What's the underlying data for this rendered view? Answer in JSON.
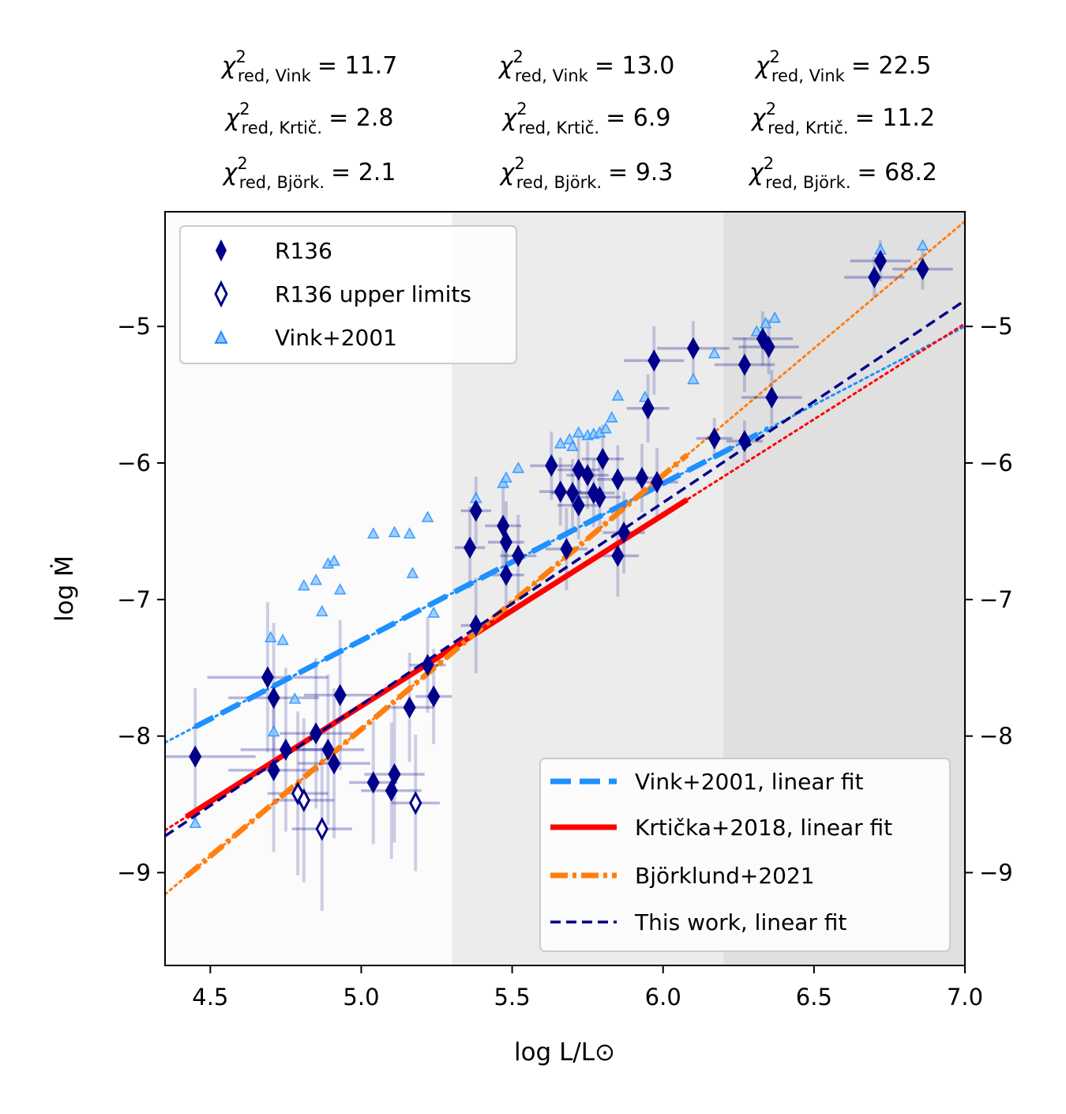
{
  "chart_data": {
    "type": "scatter",
    "xlabel": "log L/L⊙",
    "ylabel": "log Ṁ",
    "xlim": [
      4.35,
      7.0
    ],
    "ylim": [
      -9.68,
      -4.16
    ],
    "x_ticks": [
      "4.5",
      "5.0",
      "5.5",
      "6.0",
      "6.5",
      "7.0"
    ],
    "x_tick_values": [
      4.5,
      5.0,
      5.5,
      6.0,
      6.5,
      7.0
    ],
    "y_ticks": [
      "−5",
      "−6",
      "−7",
      "−8",
      "−9"
    ],
    "y_tick_values": [
      -5,
      -6,
      -7,
      -8,
      -9
    ],
    "shaded_regions": [
      {
        "x": [
          4.35,
          5.3
        ],
        "color": "#fbfbfb"
      },
      {
        "x": [
          5.3,
          6.2
        ],
        "color": "#ececec"
      },
      {
        "x": [
          6.2,
          7.0
        ],
        "color": "#e0e0e0"
      }
    ],
    "statistics": [
      {
        "vink": "χ²red, Vink = 11.7",
        "krticka": "χ²red, Krtič. = 2.8",
        "bjorklund": "χ²red, Björk. = 2.1",
        "vink_value": "= 11.7",
        "krticka_value": "= 2.8",
        "bjorklund_value": "= 2.1"
      },
      {
        "vink": "χ²red, Vink = 13.0",
        "krticka": "χ²red, Krtič. = 6.9",
        "bjorklund": "χ²red, Björk. = 9.3",
        "vink_value": "= 13.0",
        "krticka_value": "= 6.9",
        "bjorklund_value": "= 9.3"
      },
      {
        "vink": "χ²red, Vink = 22.5",
        "krticka": "χ²red, Krtič. = 11.2",
        "bjorklund": "χ²red, Björk. = 68.2",
        "vink_value": "= 22.5",
        "krticka_value": "= 11.2",
        "bjorklund_value": "= 68.2"
      }
    ],
    "stat_symbol": "χ",
    "stat_sub_prefix": "red, ",
    "stat_sub_names": [
      "Vink",
      "Krtič.",
      "Björk."
    ],
    "stat_sup": "2",
    "series": [
      {
        "name": "R136",
        "marker": "filled-diamond",
        "color": "#00008b",
        "points": [
          {
            "x": 4.45,
            "y": -8.15,
            "xerr": 0.2,
            "yerr": 0.5
          },
          {
            "x": 4.69,
            "y": -7.57,
            "xerr": 0.2,
            "yerr": 0.55
          },
          {
            "x": 4.71,
            "y": -7.72,
            "xerr": 0.15,
            "yerr": 0.55
          },
          {
            "x": 4.71,
            "y": -8.25,
            "xerr": 0.15,
            "yerr": 0.6
          },
          {
            "x": 4.75,
            "y": -8.1,
            "xerr": 0.15,
            "yerr": 0.6
          },
          {
            "x": 4.85,
            "y": -7.98,
            "xerr": 0.12,
            "yerr": 0.55
          },
          {
            "x": 4.89,
            "y": -8.1,
            "xerr": 0.12,
            "yerr": 0.55
          },
          {
            "x": 4.91,
            "y": -8.2,
            "xerr": 0.12,
            "yerr": 0.55
          },
          {
            "x": 4.93,
            "y": -7.7,
            "xerr": 0.12,
            "yerr": 0.55
          },
          {
            "x": 5.04,
            "y": -8.34,
            "xerr": 0.08,
            "yerr": 0.45
          },
          {
            "x": 5.1,
            "y": -8.4,
            "xerr": 0.1,
            "yerr": 0.5
          },
          {
            "x": 5.11,
            "y": -8.28,
            "xerr": 0.1,
            "yerr": 0.5
          },
          {
            "x": 5.16,
            "y": -7.79,
            "xerr": 0.08,
            "yerr": 0.4
          },
          {
            "x": 5.22,
            "y": -7.48,
            "xerr": 0.06,
            "yerr": 0.35
          },
          {
            "x": 5.24,
            "y": -7.71,
            "xerr": 0.06,
            "yerr": 0.35
          },
          {
            "x": 5.36,
            "y": -6.62,
            "xerr": 0.05,
            "yerr": 0.3
          },
          {
            "x": 5.38,
            "y": -6.35,
            "xerr": 0.05,
            "yerr": 0.25
          },
          {
            "x": 5.38,
            "y": -7.19,
            "xerr": 0.05,
            "yerr": 0.35
          },
          {
            "x": 5.47,
            "y": -6.46,
            "xerr": 0.06,
            "yerr": 0.3
          },
          {
            "x": 5.48,
            "y": -6.58,
            "xerr": 0.06,
            "yerr": 0.3
          },
          {
            "x": 5.48,
            "y": -6.82,
            "xerr": 0.06,
            "yerr": 0.3
          },
          {
            "x": 5.52,
            "y": -6.68,
            "xerr": 0.06,
            "yerr": 0.3
          },
          {
            "x": 5.63,
            "y": -6.02,
            "xerr": 0.07,
            "yerr": 0.25
          },
          {
            "x": 5.66,
            "y": -6.21,
            "xerr": 0.07,
            "yerr": 0.25
          },
          {
            "x": 5.68,
            "y": -6.63,
            "xerr": 0.07,
            "yerr": 0.3
          },
          {
            "x": 5.7,
            "y": -6.22,
            "xerr": 0.07,
            "yerr": 0.25
          },
          {
            "x": 5.72,
            "y": -6.05,
            "xerr": 0.07,
            "yerr": 0.25
          },
          {
            "x": 5.72,
            "y": -6.31,
            "xerr": 0.07,
            "yerr": 0.25
          },
          {
            "x": 5.75,
            "y": -6.09,
            "xerr": 0.07,
            "yerr": 0.25
          },
          {
            "x": 5.77,
            "y": -6.22,
            "xerr": 0.07,
            "yerr": 0.25
          },
          {
            "x": 5.79,
            "y": -6.25,
            "xerr": 0.07,
            "yerr": 0.25
          },
          {
            "x": 5.8,
            "y": -5.97,
            "xerr": 0.07,
            "yerr": 0.25
          },
          {
            "x": 5.85,
            "y": -6.12,
            "xerr": 0.07,
            "yerr": 0.25
          },
          {
            "x": 5.85,
            "y": -6.68,
            "xerr": 0.07,
            "yerr": 0.3
          },
          {
            "x": 5.87,
            "y": -6.51,
            "xerr": 0.07,
            "yerr": 0.3
          },
          {
            "x": 5.93,
            "y": -6.11,
            "xerr": 0.07,
            "yerr": 0.25
          },
          {
            "x": 5.95,
            "y": -5.6,
            "xerr": 0.07,
            "yerr": 0.25
          },
          {
            "x": 5.97,
            "y": -5.25,
            "xerr": 0.1,
            "yerr": 0.25
          },
          {
            "x": 5.98,
            "y": -6.14,
            "xerr": 0.07,
            "yerr": 0.25
          },
          {
            "x": 6.1,
            "y": -5.16,
            "xerr": 0.12,
            "yerr": 0.2
          },
          {
            "x": 6.17,
            "y": -5.82,
            "xerr": 0.06,
            "yerr": 0.15
          },
          {
            "x": 6.27,
            "y": -5.28,
            "xerr": 0.1,
            "yerr": 0.2
          },
          {
            "x": 6.27,
            "y": -5.84,
            "xerr": 0.06,
            "yerr": 0.15
          },
          {
            "x": 6.33,
            "y": -5.09,
            "xerr": 0.1,
            "yerr": 0.2
          },
          {
            "x": 6.35,
            "y": -5.15,
            "xerr": 0.1,
            "yerr": 0.2
          },
          {
            "x": 6.36,
            "y": -5.52,
            "xerr": 0.1,
            "yerr": 0.2
          },
          {
            "x": 6.7,
            "y": -4.64,
            "xerr": 0.1,
            "yerr": 0.15
          },
          {
            "x": 6.72,
            "y": -4.52,
            "xerr": 0.1,
            "yerr": 0.15
          },
          {
            "x": 6.86,
            "y": -4.58,
            "xerr": 0.1,
            "yerr": 0.15
          }
        ]
      },
      {
        "name": "R136 upper limits",
        "marker": "open-diamond",
        "color": "#00008b",
        "points": [
          {
            "x": 4.79,
            "y": -8.42,
            "xerr": 0.1,
            "yerr": 0.6
          },
          {
            "x": 4.81,
            "y": -8.47,
            "xerr": 0.1,
            "yerr": 0.6
          },
          {
            "x": 4.87,
            "y": -8.68,
            "xerr": 0.1,
            "yerr": 0.6
          },
          {
            "x": 5.18,
            "y": -8.49,
            "xerr": 0.08,
            "yerr": 0.5
          }
        ]
      },
      {
        "name": "Vink+2001",
        "marker": "triangle",
        "color": "#1e90ff",
        "points": [
          {
            "x": 4.45,
            "y": -8.64
          },
          {
            "x": 4.7,
            "y": -7.28
          },
          {
            "x": 4.71,
            "y": -7.97
          },
          {
            "x": 4.74,
            "y": -7.3
          },
          {
            "x": 4.78,
            "y": -7.73
          },
          {
            "x": 4.81,
            "y": -6.9
          },
          {
            "x": 4.85,
            "y": -6.86
          },
          {
            "x": 4.87,
            "y": -7.09
          },
          {
            "x": 4.89,
            "y": -6.74
          },
          {
            "x": 4.91,
            "y": -6.72
          },
          {
            "x": 4.93,
            "y": -6.93
          },
          {
            "x": 5.04,
            "y": -6.52
          },
          {
            "x": 5.11,
            "y": -6.51
          },
          {
            "x": 5.16,
            "y": -6.52
          },
          {
            "x": 5.17,
            "y": -6.81
          },
          {
            "x": 5.22,
            "y": -6.4
          },
          {
            "x": 5.24,
            "y": -7.1
          },
          {
            "x": 5.38,
            "y": -6.26
          },
          {
            "x": 5.47,
            "y": -6.15
          },
          {
            "x": 5.48,
            "y": -6.11
          },
          {
            "x": 5.52,
            "y": -6.04
          },
          {
            "x": 5.63,
            "y": -5.98
          },
          {
            "x": 5.66,
            "y": -5.86
          },
          {
            "x": 5.69,
            "y": -5.83
          },
          {
            "x": 5.7,
            "y": -5.88
          },
          {
            "x": 5.72,
            "y": -5.78
          },
          {
            "x": 5.75,
            "y": -5.8
          },
          {
            "x": 5.77,
            "y": -5.79
          },
          {
            "x": 5.79,
            "y": -5.78
          },
          {
            "x": 5.81,
            "y": -5.75
          },
          {
            "x": 5.83,
            "y": -5.67
          },
          {
            "x": 5.85,
            "y": -5.51
          },
          {
            "x": 5.94,
            "y": -5.52
          },
          {
            "x": 6.1,
            "y": -5.39
          },
          {
            "x": 6.17,
            "y": -5.2
          },
          {
            "x": 6.31,
            "y": -5.04
          },
          {
            "x": 6.34,
            "y": -4.98
          },
          {
            "x": 6.37,
            "y": -4.94
          },
          {
            "x": 6.72,
            "y": -4.44
          },
          {
            "x": 6.86,
            "y": -4.41
          }
        ]
      }
    ],
    "fits": [
      {
        "name": "Vink+2001, linear fit",
        "color": "#1e90ff",
        "style": "dashed",
        "slope": 1.15,
        "intercept": -13.05,
        "solid_range": [
          4.45,
          6.35
        ],
        "dotted_range": [
          4.35,
          7.0
        ]
      },
      {
        "name": "Krtička+2018, linear fit",
        "color": "#ff0000",
        "style": "solid",
        "slope": 1.4,
        "intercept": -14.78,
        "solid_range": [
          4.42,
          6.08
        ],
        "dotted_range": [
          4.35,
          7.0
        ]
      },
      {
        "name": "Björklund+2021",
        "color": "#ff7f0e",
        "style": "dashdot",
        "slope": 1.86,
        "intercept": -17.25,
        "solid_range": [
          4.42,
          6.08
        ],
        "dotted_range": [
          4.35,
          7.0
        ]
      },
      {
        "name": "This work, linear fit",
        "color": "#00008b",
        "style": "thin-dashed",
        "slope": 1.48,
        "intercept": -15.17,
        "solid_range": [
          4.35,
          7.0
        ],
        "dotted_range": null
      }
    ],
    "legend_upper": [
      "R136",
      "R136 upper limits",
      "Vink+2001"
    ],
    "legend_lower": [
      "Vink+2001, linear fit",
      "Krtička+2018, linear fit",
      "Björklund+2021",
      "This work, linear fit"
    ],
    "legend_positions": [
      "upper-left",
      "lower-right"
    ]
  }
}
